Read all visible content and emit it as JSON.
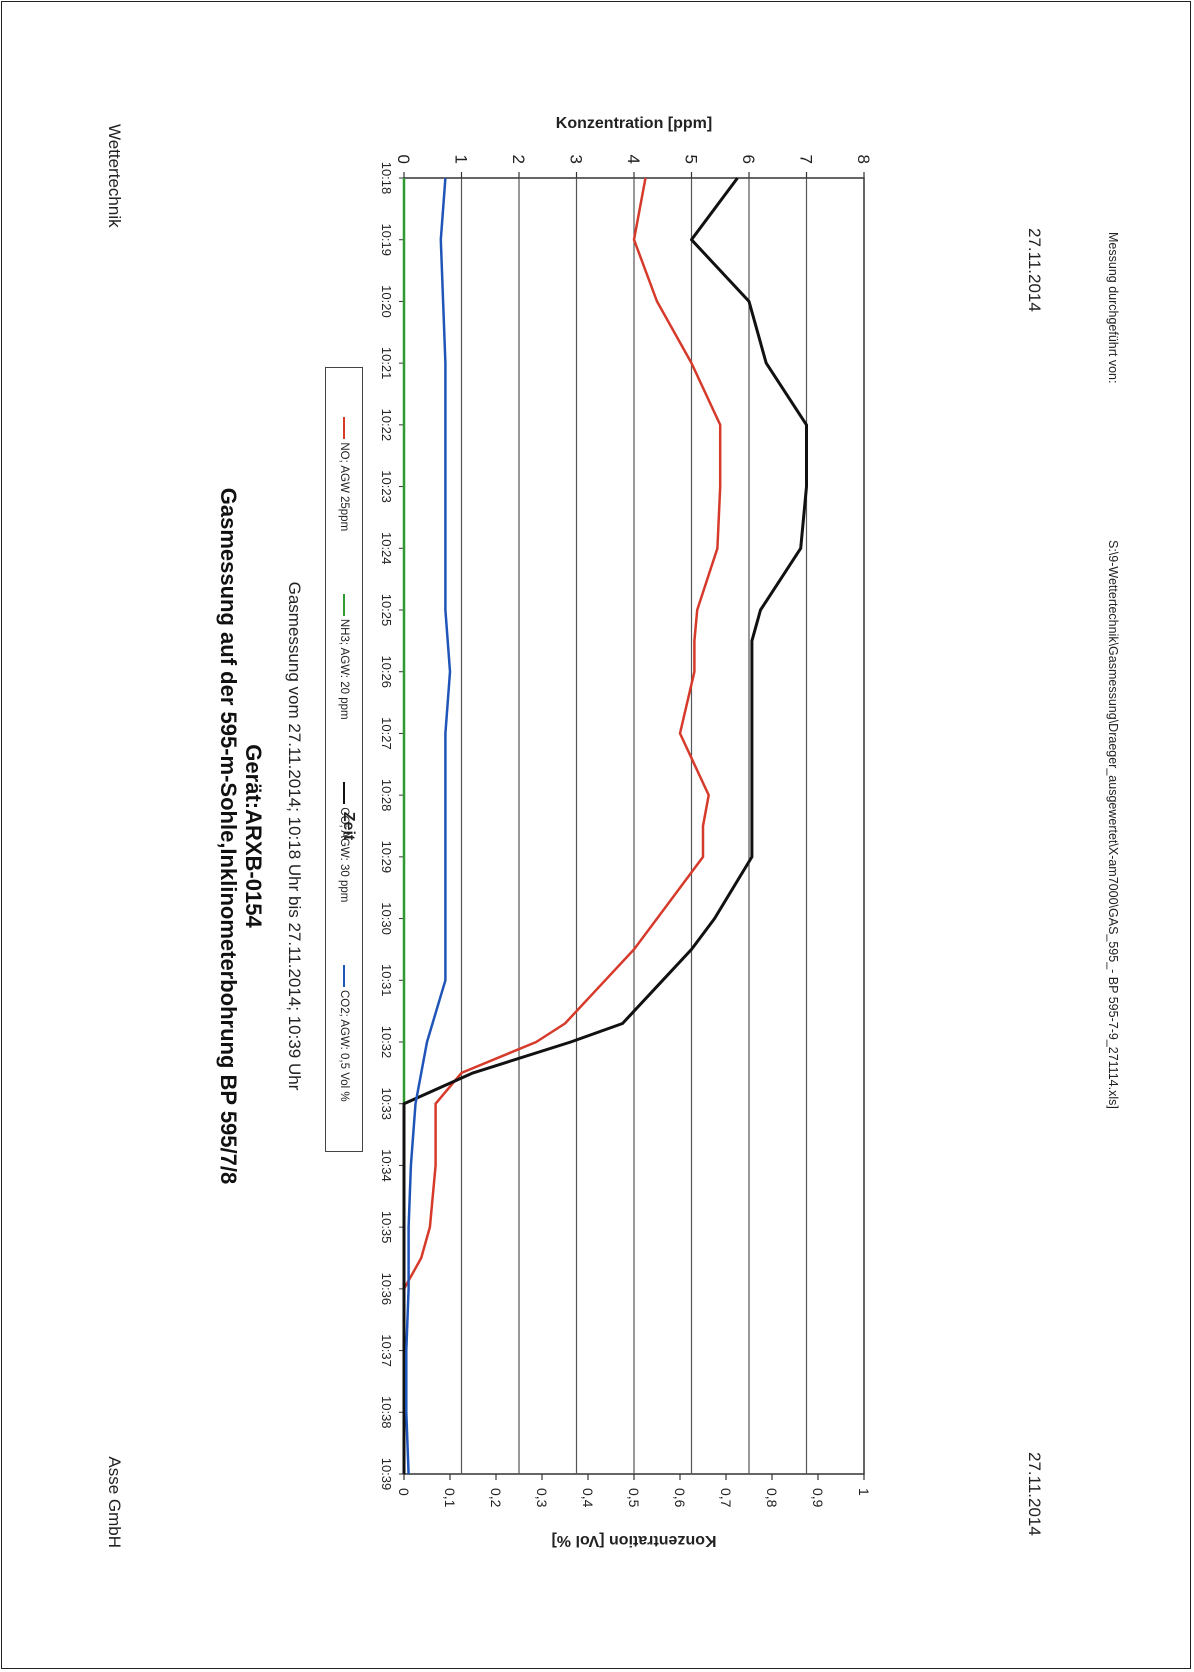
{
  "header": {
    "left": "Wettertechnik",
    "right": "Asse GmbH"
  },
  "title_line1": "Gasmessung auf der 595-m-Sohle,Inklinometerbohrung BP 595/7/8",
  "title_line2": "Gerät:ARXB-0154",
  "subtitle": "Gasmessung vom 27.11.2014; 10:18 Uhr bis 27.11.2014; 10:39 Uhr",
  "footer": {
    "date_left": "27.11.2014",
    "date_right": "27.11.2014",
    "signature_note": "Messung durchgeführt von:",
    "file_path": "S:\\9-Wettertechnik\\Gasmessung\\Draeger_ausgewertet\\X-am7000\\GAS_595_- BP 595-7-9_271114.xls]"
  },
  "colors": {
    "NO": "#d63a2a",
    "NH3": "#2e9b2e",
    "CO": "#111111",
    "CO2": "#1f55b8",
    "grid": "#555555"
  },
  "chart_data": {
    "type": "line",
    "title": "",
    "xlabel": "Zeit",
    "ylabel": "Konzentration [ppm]",
    "y2label": "Konzentration [Vol %]",
    "ylim": [
      0,
      8
    ],
    "y2lim": [
      0,
      1
    ],
    "yticks": [
      "0",
      "1",
      "2",
      "3",
      "4",
      "5",
      "6",
      "7",
      "8"
    ],
    "y2ticks": [
      "0",
      "0,1",
      "0,2",
      "0,3",
      "0,4",
      "0,5",
      "0,6",
      "0,7",
      "0,8",
      "0,9",
      "1"
    ],
    "categories": [
      "10:18",
      "10:19",
      "10:20",
      "10:21",
      "10:22",
      "10:23",
      "10:24",
      "10:25",
      "10:26",
      "10:27",
      "10:28",
      "10:29",
      "10:30",
      "10:31",
      "10:32",
      "10:33",
      "10:34",
      "10:35",
      "10:36",
      "10:37",
      "10:38",
      "10:39"
    ],
    "grid": "horizontal",
    "legend_position": "top",
    "series": [
      {
        "name": "NO; AGW 25ppm",
        "axis": "left",
        "color_key": "NO",
        "x": [
          0,
          1,
          2,
          3,
          4,
          5,
          6,
          7,
          7.5,
          8,
          9,
          10,
          10.5,
          11,
          12,
          12.5,
          13,
          13.7,
          14,
          14.5,
          15,
          15.5,
          16,
          17,
          17.5,
          18,
          19,
          20,
          21
        ],
        "values": [
          4.2,
          4.0,
          4.4,
          5.0,
          5.5,
          5.5,
          5.45,
          5.1,
          5.05,
          5.05,
          4.8,
          5.3,
          5.2,
          5.2,
          4.4,
          4.0,
          3.5,
          2.8,
          2.3,
          1.0,
          0.55,
          0.55,
          0.55,
          0.45,
          0.3,
          0.0,
          0.0,
          0.0,
          0.0
        ]
      },
      {
        "name": "NH3; AGW: 20 ppm",
        "axis": "left",
        "color_key": "NH3",
        "x": [
          0,
          21
        ],
        "values": [
          0,
          0
        ]
      },
      {
        "name": "CO; AGW: 30 ppm",
        "axis": "left",
        "color_key": "CO",
        "x": [
          0,
          1,
          2,
          3,
          4,
          5,
          6,
          7,
          7.5,
          8,
          9,
          10,
          11,
          12,
          12.5,
          13,
          13.7,
          14,
          14.5,
          15,
          16,
          17,
          18,
          19,
          20,
          21
        ],
        "values": [
          5.8,
          5.0,
          6.0,
          6.3,
          7.0,
          7.0,
          6.9,
          6.2,
          6.05,
          6.05,
          6.05,
          6.05,
          6.05,
          5.4,
          5.0,
          4.5,
          3.8,
          2.9,
          1.2,
          0.0,
          0.0,
          0.0,
          0.0,
          0.0,
          0.0,
          0.0
        ]
      },
      {
        "name": "CO2; AGW: 0,5 Vol %",
        "axis": "right",
        "color_key": "CO2",
        "x": [
          0,
          1,
          2,
          3,
          4,
          5,
          6,
          7,
          8,
          9,
          10,
          11,
          12,
          13,
          13.5,
          14,
          15,
          16,
          17,
          18,
          19,
          20,
          21
        ],
        "values": [
          0.09,
          0.08,
          0.085,
          0.09,
          0.09,
          0.09,
          0.09,
          0.09,
          0.1,
          0.09,
          0.09,
          0.09,
          0.09,
          0.09,
          0.07,
          0.05,
          0.025,
          0.015,
          0.01,
          0.01,
          0.005,
          0.005,
          0.01
        ]
      }
    ]
  }
}
